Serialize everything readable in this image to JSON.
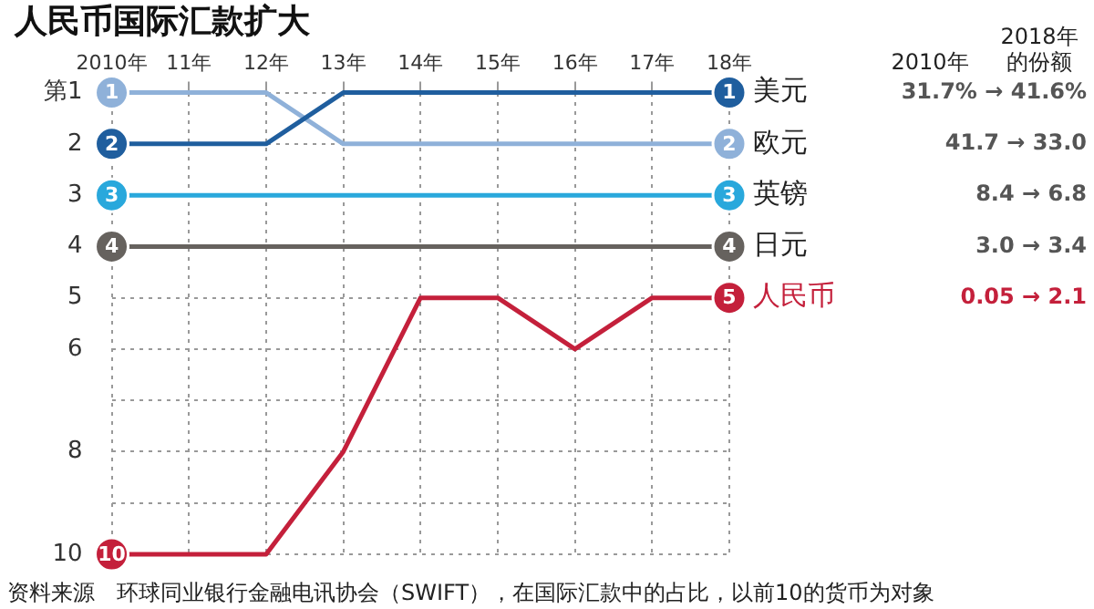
{
  "chart_data": {
    "type": "line",
    "title": "人民币国际汇款扩大",
    "categories": [
      "2010年",
      "11年",
      "12年",
      "13年",
      "14年",
      "15年",
      "16年",
      "17年",
      "18年"
    ],
    "ylim": [
      10,
      1
    ],
    "yticks": [
      {
        "value": 1,
        "label": "第1"
      },
      2,
      3,
      4,
      5,
      6,
      {
        "value": 7,
        "label": null
      },
      8,
      {
        "value": 9,
        "label": null
      },
      10
    ],
    "grid": true,
    "legend": false,
    "line_style": "solid",
    "series": [
      {
        "name": "美元",
        "color": "#1f5e9e",
        "values": [
          2,
          2,
          2,
          1,
          1,
          1,
          1,
          1,
          1
        ],
        "value_labels": [
          "2",
          null,
          null,
          null,
          null,
          null,
          null,
          null,
          "1"
        ]
      },
      {
        "name": "欧元",
        "color": "#8fb1d9",
        "values": [
          1,
          1,
          1,
          2,
          2,
          2,
          2,
          2,
          2
        ],
        "value_labels": [
          "1",
          null,
          null,
          null,
          null,
          null,
          null,
          null,
          "2"
        ]
      },
      {
        "name": "英镑",
        "color": "#29a8dc",
        "values": [
          3,
          3,
          3,
          3,
          3,
          3,
          3,
          3,
          3
        ],
        "value_labels": [
          "3",
          null,
          null,
          null,
          null,
          null,
          null,
          null,
          "3"
        ]
      },
      {
        "name": "日元",
        "color": "#66625e",
        "values": [
          4,
          4,
          4,
          4,
          4,
          4,
          4,
          4,
          4
        ],
        "value_labels": [
          "4",
          null,
          null,
          null,
          null,
          null,
          null,
          null,
          "4"
        ]
      },
      {
        "name": "人民币",
        "color": "#c4203b",
        "values": [
          10,
          10,
          10,
          8,
          5,
          5,
          6,
          5,
          5
        ],
        "value_labels": [
          "10",
          null,
          null,
          null,
          null,
          null,
          null,
          null,
          "5"
        ]
      }
    ],
    "annotations": [
      "2010年",
      "2018年的份额",
      "31.7% → 41.6%",
      "41.7 → 33.0",
      "8.4 → 6.8",
      "3.0 → 3.4",
      "0.05 → 2.1",
      "资料来源　环球同业银行金融电讯协会（SWIFT），在国际汇款中的占比，以前10的货币为对象"
    ]
  }
}
